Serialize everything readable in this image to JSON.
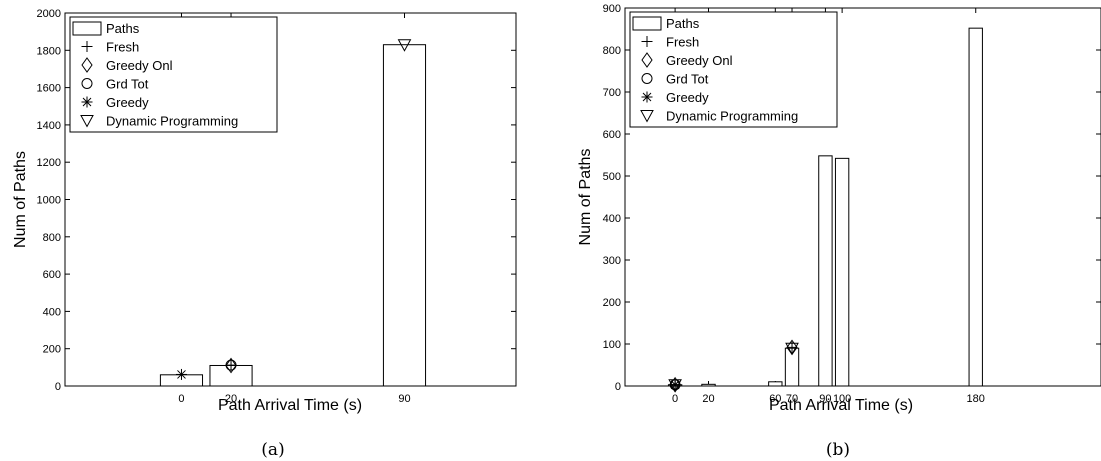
{
  "chart_data": [
    {
      "type": "bar",
      "caption": "(a)",
      "xlabel": "Path Arrival Time (s)",
      "ylabel": "Num of Paths",
      "xlim": [
        -47,
        135
      ],
      "ylim": [
        0,
        2000
      ],
      "yticks": [
        0,
        200,
        400,
        600,
        800,
        1000,
        1200,
        1400,
        1600,
        1800,
        2000
      ],
      "xticks": [
        0,
        20,
        90
      ],
      "bar_width": 17,
      "legend_position": "top-left",
      "legend": [
        "Paths",
        "Fresh",
        "Greedy Onl",
        "Grd Tot",
        "Greedy",
        "Dynamic Programming"
      ],
      "bars": [
        {
          "x": 0,
          "value": 60
        },
        {
          "x": 20,
          "value": 110
        },
        {
          "x": 90,
          "value": 1830
        }
      ],
      "markers": [
        {
          "series": "Greedy",
          "x": 0,
          "y": 62
        },
        {
          "series": "Fresh",
          "x": 20,
          "y": 112
        },
        {
          "series": "Greedy Onl",
          "x": 20,
          "y": 110
        },
        {
          "series": "Grd Tot",
          "x": 20,
          "y": 112
        },
        {
          "series": "Dynamic Programming",
          "x": 90,
          "y": 1830
        }
      ]
    },
    {
      "type": "bar",
      "caption": "(b)",
      "xlabel": "Path Arrival Time (s)",
      "ylabel": "Num of Paths",
      "xlim": [
        -30,
        255
      ],
      "ylim": [
        0,
        900
      ],
      "yticks": [
        0,
        100,
        200,
        300,
        400,
        500,
        600,
        700,
        800,
        900
      ],
      "xticks": [
        0,
        20,
        60,
        70,
        90,
        100,
        180
      ],
      "bar_width": 8,
      "legend_position": "top-left",
      "legend": [
        "Paths",
        "Fresh",
        "Greedy Onl",
        "Grd Tot",
        "Greedy",
        "Dynamic Programming"
      ],
      "bars": [
        {
          "x": 0,
          "value": 3
        },
        {
          "x": 20,
          "value": 4
        },
        {
          "x": 60,
          "value": 10
        },
        {
          "x": 70,
          "value": 90
        },
        {
          "x": 90,
          "value": 548
        },
        {
          "x": 100,
          "value": 542
        },
        {
          "x": 180,
          "value": 852
        }
      ],
      "markers": [
        {
          "series": "Fresh",
          "x": 0,
          "y": 3
        },
        {
          "series": "Greedy Onl",
          "x": 0,
          "y": 3
        },
        {
          "series": "Grd Tot",
          "x": 0,
          "y": 3
        },
        {
          "series": "Greedy",
          "x": 0,
          "y": 3
        },
        {
          "series": "Dynamic Programming",
          "x": 0,
          "y": 3
        },
        {
          "series": "Fresh",
          "x": 70,
          "y": 92
        },
        {
          "series": "Greedy Onl",
          "x": 70,
          "y": 92
        },
        {
          "series": "Dynamic Programming",
          "x": 70,
          "y": 90
        }
      ]
    }
  ]
}
